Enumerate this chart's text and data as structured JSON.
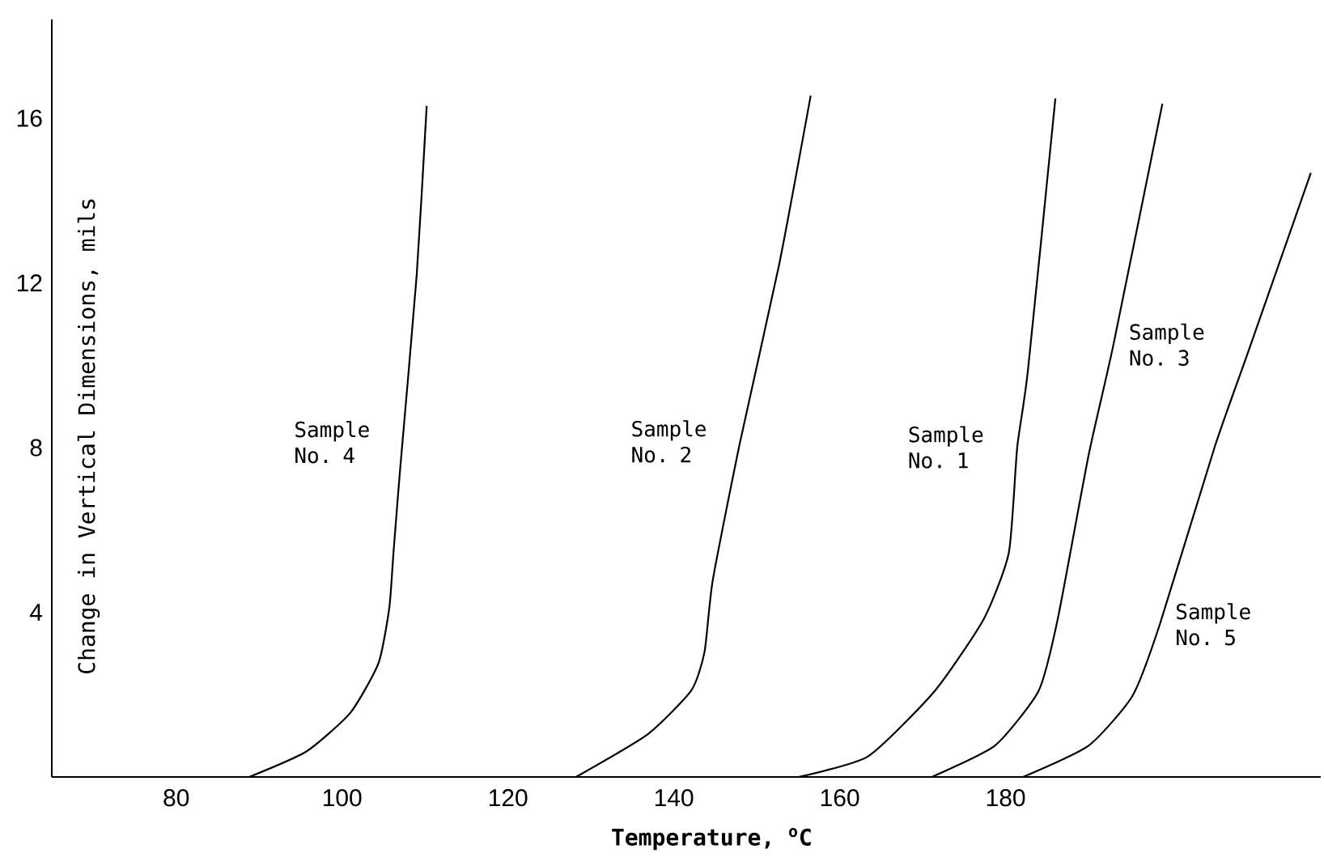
{
  "chart_data": {
    "type": "line",
    "xlabel": "Temperature, $^{o}$C",
    "ylabel": "Change in Vertical Dimensions, mils",
    "xlim": [
      65,
      218
    ],
    "ylim": [
      0,
      18.4
    ],
    "xticks": [
      80,
      100,
      120,
      140,
      160,
      180
    ],
    "yticks": [
      4,
      8,
      12,
      16
    ],
    "legend": false,
    "marker": "none",
    "line_style": "solid",
    "series": [
      {
        "name": "Sample No. 4",
        "color": "#000000",
        "x": [
          88.8,
          95.7,
          101.0,
          104.4,
          105.7,
          106.2,
          107.0,
          109.0,
          110.2
        ],
        "values": [
          0,
          0.62,
          1.56,
          2.77,
          4.12,
          5.46,
          7.48,
          12.2,
          16.3
        ]
      },
      {
        "name": "Sample No. 2",
        "color": "#000000",
        "x": [
          128.2,
          136.8,
          142.1,
          143.7,
          144.7,
          148.0,
          152.7,
          156.5
        ],
        "values": [
          0,
          1.03,
          2.1,
          3.04,
          4.79,
          8.15,
          12.45,
          16.55
        ]
      },
      {
        "name": "Sample No. 1",
        "color": "#000000",
        "x": [
          155.0,
          163.4,
          171.5,
          177.4,
          180.4,
          181.4,
          182.7,
          186.0
        ],
        "values": [
          0,
          0.5,
          2.1,
          3.85,
          5.46,
          8.01,
          9.89,
          16.48
        ]
      },
      {
        "name": "Sample No. 3",
        "color": "#000000",
        "x": [
          171.1,
          178.7,
          184.0,
          186.3,
          190.0,
          193.0,
          198.9
        ],
        "values": [
          0,
          0.76,
          2.1,
          3.85,
          7.81,
          10.5,
          16.35
        ]
      },
      {
        "name": "Sample No. 5",
        "color": "#000000",
        "x": [
          182.1,
          190.0,
          195.3,
          198.6,
          205.2,
          209.2,
          216.8
        ],
        "values": [
          0,
          0.76,
          1.97,
          3.71,
          8.01,
          10.3,
          14.67
        ]
      }
    ]
  }
}
